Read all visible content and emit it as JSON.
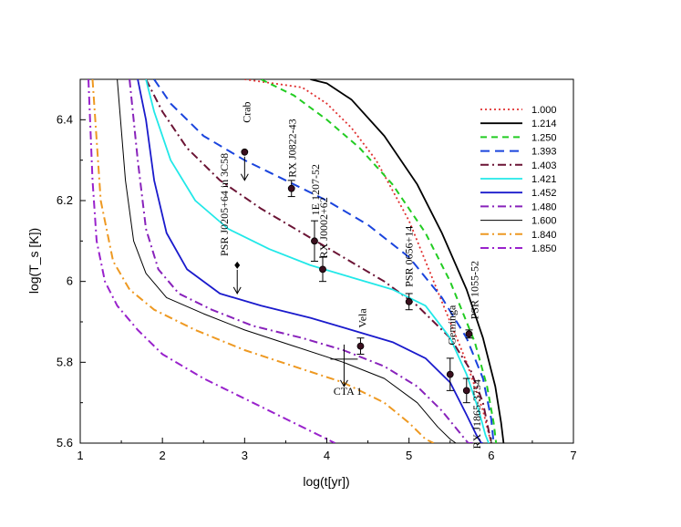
{
  "chart_data": {
    "type": "line",
    "title": "",
    "xlabel": "log(t[yr])",
    "ylabel": "log(T_s [K])",
    "xlim": [
      1,
      7
    ],
    "ylim": [
      5.6,
      6.5
    ],
    "xticks": [
      1,
      2,
      3,
      4,
      5,
      6,
      7
    ],
    "yticks": [
      5.6,
      5.8,
      6.0,
      6.2,
      6.4
    ],
    "xtick_labels": [
      "1",
      "2",
      "3",
      "4",
      "5",
      "6",
      "7"
    ],
    "ytick_labels": [
      "5.6",
      "5.8",
      "6",
      "6.2",
      "6.4"
    ],
    "grid": false,
    "legend_position": "top-right",
    "series": [
      {
        "name": "1.000",
        "color": "#e03030",
        "dash": "dotted",
        "x": [
          3.0,
          3.7,
          4.0,
          4.3,
          4.6,
          5.0,
          5.4,
          5.7,
          5.9,
          6.0
        ],
        "y": [
          6.5,
          6.48,
          6.44,
          6.38,
          6.3,
          6.15,
          5.95,
          5.8,
          5.68,
          5.6
        ]
      },
      {
        "name": "1.214",
        "color": "#000000",
        "dash": "solid",
        "x": [
          3.8,
          4.0,
          4.3,
          4.7,
          5.1,
          5.4,
          5.7,
          5.9,
          6.05,
          6.12,
          6.15
        ],
        "y": [
          6.5,
          6.49,
          6.45,
          6.36,
          6.24,
          6.12,
          5.98,
          5.86,
          5.74,
          5.65,
          5.6
        ]
      },
      {
        "name": "1.250",
        "color": "#22cc22",
        "dash": "dashed",
        "x": [
          3.2,
          3.6,
          4.0,
          4.4,
          4.8,
          5.2,
          5.5,
          5.8,
          5.95,
          6.03,
          6.06
        ],
        "y": [
          6.5,
          6.46,
          6.4,
          6.33,
          6.24,
          6.12,
          6.0,
          5.85,
          5.74,
          5.65,
          5.6
        ]
      },
      {
        "name": "1.393",
        "color": "#1a44dd",
        "dash": "longdash",
        "x": [
          1.9,
          2.1,
          2.5,
          3.0,
          3.5,
          4.0,
          4.5,
          5.0,
          5.4,
          5.7,
          5.9,
          6.0,
          6.03
        ],
        "y": [
          6.5,
          6.44,
          6.36,
          6.3,
          6.25,
          6.2,
          6.14,
          6.06,
          5.96,
          5.86,
          5.76,
          5.66,
          5.6
        ]
      },
      {
        "name": "1.403",
        "color": "#6b1435",
        "dash": "dashdot",
        "x": [
          1.8,
          2.0,
          2.3,
          2.7,
          3.2,
          3.7,
          4.2,
          4.7,
          5.1,
          5.5,
          5.75,
          5.9,
          5.97,
          6.0
        ],
        "y": [
          6.5,
          6.42,
          6.33,
          6.25,
          6.18,
          6.12,
          6.06,
          6.0,
          5.94,
          5.86,
          5.78,
          5.7,
          5.63,
          5.6
        ]
      },
      {
        "name": "1.421",
        "color": "#22e8e8",
        "dash": "solid",
        "x": [
          1.8,
          1.9,
          2.1,
          2.4,
          2.8,
          3.3,
          3.8,
          4.3,
          4.8,
          5.2,
          5.5,
          5.7,
          5.85,
          5.93,
          5.97
        ],
        "y": [
          6.5,
          6.42,
          6.3,
          6.2,
          6.13,
          6.08,
          6.04,
          6.01,
          5.98,
          5.94,
          5.86,
          5.77,
          5.68,
          5.62,
          5.6
        ]
      },
      {
        "name": "1.452",
        "color": "#1a1acc",
        "dash": "solid",
        "x": [
          1.7,
          1.8,
          1.9,
          2.05,
          2.3,
          2.7,
          3.2,
          3.8,
          4.3,
          4.8,
          5.2,
          5.5,
          5.7,
          5.82,
          5.88,
          5.9
        ],
        "y": [
          6.5,
          6.4,
          6.25,
          6.12,
          6.03,
          5.97,
          5.94,
          5.91,
          5.88,
          5.85,
          5.81,
          5.75,
          5.67,
          5.62,
          5.6,
          5.6
        ]
      },
      {
        "name": "1.480",
        "color": "#8822bb",
        "dash": "dashdot",
        "x": [
          1.6,
          1.7,
          1.8,
          1.95,
          2.2,
          2.6,
          3.1,
          3.7,
          4.2,
          4.7,
          5.1,
          5.4,
          5.6,
          5.72,
          5.78
        ],
        "y": [
          6.5,
          6.3,
          6.13,
          6.03,
          5.97,
          5.93,
          5.89,
          5.86,
          5.83,
          5.79,
          5.74,
          5.68,
          5.63,
          5.6,
          5.6
        ]
      },
      {
        "name": "1.600",
        "color": "#000000",
        "dash": "thin",
        "x": [
          1.45,
          1.55,
          1.65,
          1.8,
          2.05,
          2.5,
          3.0,
          3.6,
          4.2,
          4.7,
          5.1,
          5.35,
          5.5,
          5.57
        ],
        "y": [
          6.5,
          6.25,
          6.1,
          6.02,
          5.96,
          5.92,
          5.88,
          5.84,
          5.8,
          5.76,
          5.7,
          5.64,
          5.61,
          5.6
        ]
      },
      {
        "name": "1.840",
        "color": "#ee9922",
        "dash": "dashdot",
        "x": [
          1.15,
          1.25,
          1.4,
          1.6,
          1.9,
          2.4,
          3.0,
          3.6,
          4.2,
          4.7,
          5.0,
          5.2,
          5.3
        ],
        "y": [
          6.5,
          6.2,
          6.05,
          5.98,
          5.93,
          5.88,
          5.83,
          5.79,
          5.75,
          5.7,
          5.65,
          5.61,
          5.6
        ]
      },
      {
        "name": "1.850",
        "color": "#9922cc",
        "dash": "dashdot",
        "x": [
          1.1,
          1.15,
          1.2,
          1.3,
          1.45,
          1.7,
          2.0,
          2.5,
          3.0,
          3.5,
          3.9,
          4.1
        ],
        "y": [
          6.5,
          6.25,
          6.1,
          6.0,
          5.94,
          5.88,
          5.82,
          5.76,
          5.71,
          5.66,
          5.62,
          5.6
        ]
      }
    ],
    "observations": [
      {
        "label": "Crab",
        "x": 3.0,
        "y": 6.32,
        "kind": "upper_limit",
        "marker": "circle"
      },
      {
        "label": "RX J0822-43",
        "x": 3.57,
        "y": 6.23,
        "err": 0.02,
        "kind": "point",
        "marker": "circle"
      },
      {
        "label": "PSR J0205+64 in 3C58",
        "x": 2.91,
        "y": 6.04,
        "kind": "upper_limit",
        "marker": "diamond"
      },
      {
        "label": "1E 1207-52",
        "x": 3.85,
        "y": 6.1,
        "err": 0.05,
        "kind": "point",
        "marker": "circle"
      },
      {
        "label": "RX J0002+62",
        "x": 3.95,
        "y": 6.03,
        "err": 0.03,
        "kind": "point",
        "marker": "circle"
      },
      {
        "label": "PSR 0656+14",
        "x": 5.0,
        "y": 5.95,
        "err": 0.02,
        "kind": "point",
        "marker": "circle"
      },
      {
        "label": "PSR 1055-52",
        "x": 5.73,
        "y": 5.87,
        "err": 0.01,
        "kind": "point",
        "marker": "circle"
      },
      {
        "label": "Vela",
        "x": 4.41,
        "y": 5.84,
        "err": 0.02,
        "kind": "point",
        "marker": "circle"
      },
      {
        "label": "Geminga",
        "x": 5.5,
        "y": 5.77,
        "err": 0.04,
        "kind": "point",
        "marker": "circle"
      },
      {
        "label": "RX J1865-3754",
        "x": 5.7,
        "y": 5.73,
        "err": 0.03,
        "kind": "point",
        "marker": "circle"
      },
      {
        "label": "CTA 1",
        "x": 4.21,
        "y": 5.81,
        "kind": "upper_limit_cross",
        "marker": "none"
      }
    ]
  }
}
